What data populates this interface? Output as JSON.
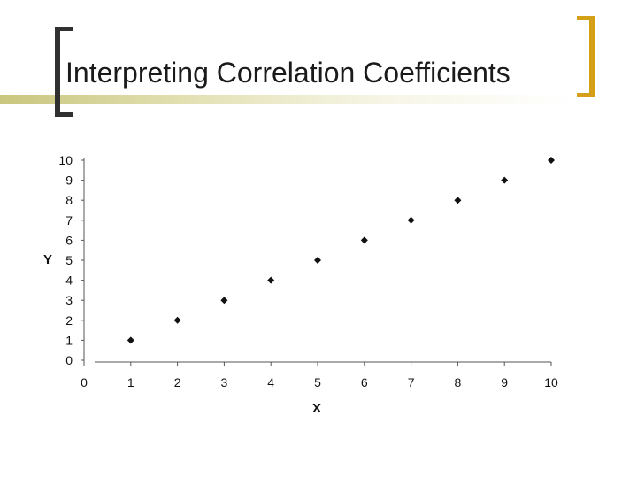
{
  "slide": {
    "title": "Interpreting Correlation Coefficients"
  },
  "colors": {
    "left_bracket": "#303030",
    "right_bracket": "#d4a017",
    "band": "#c9c67e",
    "points": "#111111"
  },
  "chart_data": {
    "type": "scatter",
    "x": [
      1,
      2,
      3,
      4,
      5,
      6,
      7,
      8,
      9,
      10
    ],
    "y": [
      1,
      2,
      3,
      4,
      5,
      6,
      7,
      8,
      9,
      10
    ],
    "xlabel": "X",
    "ylabel": "Y",
    "xlim": [
      0,
      10
    ],
    "ylim": [
      0,
      10
    ],
    "xticks": [
      "0",
      "1",
      "2",
      "3",
      "4",
      "5",
      "6",
      "7",
      "8",
      "9",
      "10"
    ],
    "yticks": [
      "0",
      "1",
      "2",
      "3",
      "4",
      "5",
      "6",
      "7",
      "8",
      "9",
      "10"
    ],
    "grid": false
  }
}
